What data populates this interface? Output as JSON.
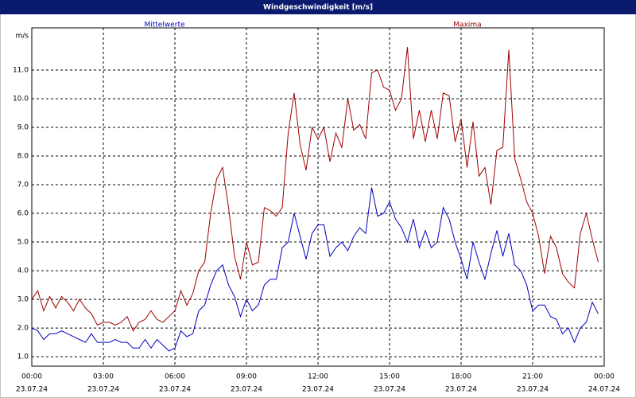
{
  "chart_data": {
    "type": "line",
    "title": "Windgeschwindigkeit [m/s]",
    "y_label": "m/s",
    "x": [
      0,
      0.25,
      0.5,
      0.75,
      1,
      1.25,
      1.5,
      1.75,
      2,
      2.25,
      2.5,
      2.75,
      3,
      3.25,
      3.5,
      3.75,
      4,
      4.25,
      4.5,
      4.75,
      5,
      5.25,
      5.5,
      5.75,
      6,
      6.25,
      6.5,
      6.75,
      7,
      7.25,
      7.5,
      7.75,
      8,
      8.25,
      8.5,
      8.75,
      9,
      9.25,
      9.5,
      9.75,
      10,
      10.25,
      10.5,
      10.75,
      11,
      11.25,
      11.5,
      11.75,
      12,
      12.25,
      12.5,
      12.75,
      13,
      13.25,
      13.5,
      13.75,
      14,
      14.25,
      14.5,
      14.75,
      15,
      15.25,
      15.5,
      15.75,
      16,
      16.25,
      16.5,
      16.75,
      17,
      17.25,
      17.5,
      17.75,
      18,
      18.25,
      18.5,
      18.75,
      19,
      19.25,
      19.5,
      19.75,
      20,
      20.25,
      20.5,
      20.75,
      21,
      21.25,
      21.5,
      21.75,
      22,
      22.25,
      22.5,
      22.75,
      23,
      23.25,
      23.5,
      23.75
    ],
    "series": [
      {
        "name": "Mittelwerte",
        "color": "#0000c0",
        "values": [
          2.0,
          1.9,
          1.6,
          1.8,
          1.8,
          1.9,
          1.8,
          1.7,
          1.6,
          1.5,
          1.8,
          1.5,
          1.5,
          1.5,
          1.6,
          1.5,
          1.5,
          1.3,
          1.3,
          1.6,
          1.3,
          1.6,
          1.4,
          1.2,
          1.3,
          1.9,
          1.7,
          1.8,
          2.6,
          2.8,
          3.5,
          4.0,
          4.2,
          3.5,
          3.1,
          2.4,
          3.0,
          2.6,
          2.8,
          3.5,
          3.7,
          3.7,
          4.8,
          5.0,
          6.0,
          5.2,
          4.4,
          5.3,
          5.6,
          5.6,
          4.5,
          4.8,
          5.0,
          4.7,
          5.2,
          5.5,
          5.3,
          6.9,
          5.9,
          6.0,
          6.4,
          5.8,
          5.5,
          5.0,
          5.8,
          4.8,
          5.4,
          4.8,
          5.0,
          6.2,
          5.8,
          5.0,
          4.4,
          3.7,
          5.0,
          4.3,
          3.7,
          4.6,
          5.4,
          4.5,
          5.3,
          4.2,
          4.0,
          3.5,
          2.6,
          2.8,
          2.8,
          2.4,
          2.3,
          1.8,
          2.0,
          1.5,
          2.0,
          2.2,
          2.9,
          2.5
        ]
      },
      {
        "name": "Maxima",
        "color": "#a00000",
        "values": [
          3.0,
          3.3,
          2.6,
          3.1,
          2.7,
          3.1,
          2.9,
          2.6,
          3.0,
          2.7,
          2.5,
          2.1,
          2.2,
          2.2,
          2.1,
          2.2,
          2.4,
          1.9,
          2.2,
          2.3,
          2.6,
          2.3,
          2.2,
          2.4,
          2.6,
          3.3,
          2.8,
          3.2,
          4.0,
          4.3,
          6.0,
          7.2,
          7.6,
          6.2,
          4.5,
          3.7,
          5.0,
          4.2,
          4.3,
          6.2,
          6.1,
          5.9,
          6.2,
          8.8,
          10.2,
          8.4,
          7.5,
          9.0,
          8.6,
          9.0,
          7.8,
          8.8,
          8.3,
          10.0,
          8.9,
          9.1,
          8.6,
          10.9,
          11.0,
          10.4,
          10.3,
          9.6,
          10.0,
          11.8,
          8.6,
          9.6,
          8.5,
          9.6,
          8.6,
          10.2,
          10.1,
          8.5,
          9.3,
          7.6,
          9.2,
          7.3,
          7.6,
          6.3,
          8.2,
          8.3,
          11.7,
          7.9,
          7.2,
          6.4,
          6.0,
          5.2,
          3.9,
          5.2,
          4.8,
          3.9,
          3.6,
          3.4,
          5.3,
          6.0,
          5.1,
          4.3
        ]
      }
    ],
    "xlim": [
      0,
      24
    ],
    "ylim": [
      0.67,
      12.47
    ],
    "xticks": [
      {
        "value": 0,
        "label": "00:00"
      },
      {
        "value": 3,
        "label": "03:00"
      },
      {
        "value": 6,
        "label": "06:00"
      },
      {
        "value": 9,
        "label": "09:00"
      },
      {
        "value": 12,
        "label": "12:00"
      },
      {
        "value": 15,
        "label": "15:00"
      },
      {
        "value": 18,
        "label": "18:00"
      },
      {
        "value": 21,
        "label": "21:00"
      },
      {
        "value": 24,
        "label": "00:00"
      }
    ],
    "xtick_dates": [
      "23.07.24",
      "23.07.24",
      "23.07.24",
      "23.07.24",
      "23.07.24",
      "23.07.24",
      "23.07.24",
      "23.07.24",
      "24.07.24"
    ],
    "yticks": [
      {
        "value": 1,
        "label": "1.0"
      },
      {
        "value": 2,
        "label": "2.0"
      },
      {
        "value": 3,
        "label": "3.0"
      },
      {
        "value": 4,
        "label": "4.0"
      },
      {
        "value": 5,
        "label": "5.0"
      },
      {
        "value": 6,
        "label": "6.0"
      },
      {
        "value": 7,
        "label": "7.0"
      },
      {
        "value": 8,
        "label": "8.0"
      },
      {
        "value": 9,
        "label": "9.0"
      },
      {
        "value": 10,
        "label": "10.0"
      },
      {
        "value": 11,
        "label": "11.0"
      }
    ],
    "grid": true
  }
}
